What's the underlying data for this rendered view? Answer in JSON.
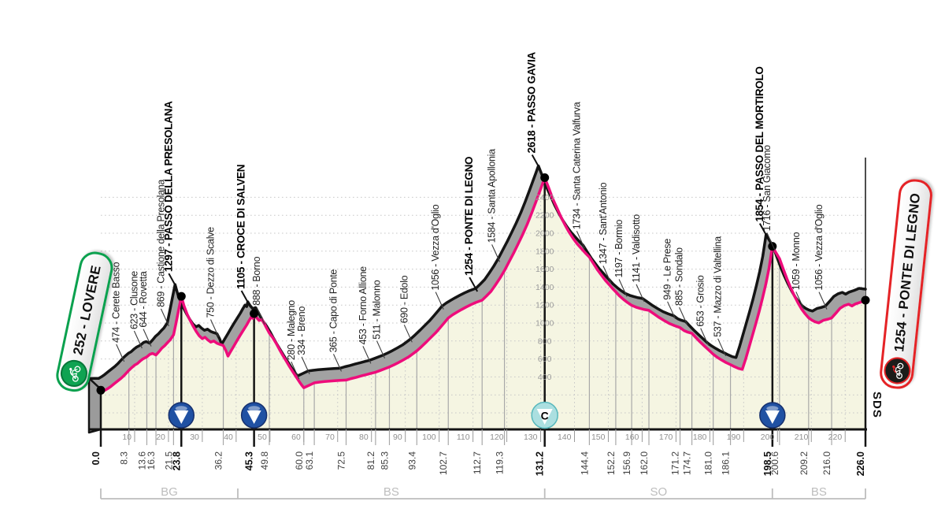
{
  "chart_data": {
    "type": "area",
    "x_range_km": [
      0,
      226
    ],
    "start": {
      "label": "252 - LOVERE",
      "km": 0.0,
      "elevation": 252
    },
    "finish": {
      "label": "1254 - PONTE DI LEGNO",
      "km": 226.0,
      "elevation": 1254
    },
    "waypoints": [
      {
        "km": 8.3,
        "elevation": 474,
        "label": "474 - Cerete Basso",
        "emphasis": false,
        "marker": null
      },
      {
        "km": 13.6,
        "elevation": 623,
        "label": "623 - Clusone",
        "emphasis": false,
        "marker": null
      },
      {
        "km": 16.3,
        "elevation": 644,
        "label": "644 - Rovetta",
        "emphasis": false,
        "marker": null
      },
      {
        "km": 21.5,
        "elevation": 869,
        "label": "869 - Castione della Presolana",
        "emphasis": false,
        "marker": null
      },
      {
        "km": 23.8,
        "elevation": 1297,
        "label": "1297 - PASSO DELLA PRESOLANA",
        "emphasis": true,
        "marker": "kom"
      },
      {
        "km": 36.2,
        "elevation": 750,
        "label": "750 - Dezzo di Scalve",
        "emphasis": false,
        "marker": null
      },
      {
        "km": 45.3,
        "elevation": 1105,
        "label": "1105 - CROCE DI SALVEN",
        "emphasis": true,
        "marker": "kom"
      },
      {
        "km": 49.8,
        "elevation": 888,
        "label": "888 - Borno",
        "emphasis": false,
        "marker": null
      },
      {
        "km": 60.0,
        "elevation": 280,
        "label": "280 - Malegno",
        "emphasis": false,
        "marker": null
      },
      {
        "km": 63.1,
        "elevation": 334,
        "label": "334 - Breno",
        "emphasis": false,
        "marker": null
      },
      {
        "km": 72.5,
        "elevation": 365,
        "label": "365 - Capo di Ponte",
        "emphasis": false,
        "marker": null
      },
      {
        "km": 81.2,
        "elevation": 453,
        "label": "453 - Forno Allione",
        "emphasis": false,
        "marker": null
      },
      {
        "km": 85.3,
        "elevation": 511,
        "label": "511 - Malonno",
        "emphasis": false,
        "marker": null
      },
      {
        "km": 93.4,
        "elevation": 690,
        "label": "690 - Edolo",
        "emphasis": false,
        "marker": null
      },
      {
        "km": 102.7,
        "elevation": 1056,
        "label": "1056 - Vezza d'Oglio",
        "emphasis": false,
        "marker": null
      },
      {
        "km": 112.7,
        "elevation": 1254,
        "label": "1254 - PONTE DI LEGNO",
        "emphasis": true,
        "marker": null
      },
      {
        "km": 119.3,
        "elevation": 1584,
        "label": "1584 - Santa Apollonia",
        "emphasis": false,
        "marker": null
      },
      {
        "km": 131.2,
        "elevation": 2618,
        "label": "2618 - PASSO GAVIA",
        "emphasis": true,
        "marker": "cima"
      },
      {
        "km": 144.4,
        "elevation": 1734,
        "label": "1734 - Santa Caterina Valfurva",
        "emphasis": false,
        "marker": null
      },
      {
        "km": 152.2,
        "elevation": 1347,
        "label": "1347 - Sant'Antonio",
        "emphasis": false,
        "marker": null
      },
      {
        "km": 156.9,
        "elevation": 1197,
        "label": "1197 - Bormio",
        "emphasis": false,
        "marker": null
      },
      {
        "km": 162.0,
        "elevation": 1141,
        "label": "1141 - Valdisotto",
        "emphasis": false,
        "marker": null
      },
      {
        "km": 171.2,
        "elevation": 949,
        "label": "949 - Le Prese",
        "emphasis": false,
        "marker": null
      },
      {
        "km": 174.7,
        "elevation": 885,
        "label": "885 - Sondalo",
        "emphasis": false,
        "marker": null
      },
      {
        "km": 181.0,
        "elevation": 653,
        "label": "653 - Grosio",
        "emphasis": false,
        "marker": null
      },
      {
        "km": 186.1,
        "elevation": 537,
        "label": "537 - Mazzo di Valtellina",
        "emphasis": false,
        "marker": null
      },
      {
        "km": 198.5,
        "elevation": 1854,
        "label": "1854 - PASSO DEL MORTIROLO",
        "emphasis": true,
        "marker": "kom"
      },
      {
        "km": 200.6,
        "elevation": 1716,
        "label": "1716 - San Giacomo",
        "emphasis": false,
        "marker": null
      },
      {
        "km": 209.2,
        "elevation": 1059,
        "label": "1059 - Monno",
        "emphasis": false,
        "marker": null
      },
      {
        "km": 216.0,
        "elevation": 1056,
        "label": "1056 - Vezza d'Oglio",
        "emphasis": false,
        "marker": null
      }
    ],
    "mountain_markers": [
      {
        "km": 23.8,
        "type": "kom",
        "icon": "triangle-down-circle-icon"
      },
      {
        "km": 45.3,
        "type": "kom",
        "icon": "triangle-down-circle-icon"
      },
      {
        "km": 131.2,
        "type": "cima",
        "icon": "cima-coppi-c-icon",
        "letter": "C"
      },
      {
        "km": 198.5,
        "type": "kom",
        "icon": "triangle-down-circle-icon"
      }
    ],
    "km_ticks": [
      {
        "label": "0.0",
        "km": 0.0,
        "bold": true
      },
      {
        "label": "8.3",
        "km": 8.3,
        "bold": false
      },
      {
        "label": "13.6",
        "km": 13.6,
        "bold": false
      },
      {
        "label": "16.3",
        "km": 16.3,
        "bold": false
      },
      {
        "label": "21.5",
        "km": 21.5,
        "bold": false
      },
      {
        "label": "23.8",
        "km": 23.8,
        "bold": true
      },
      {
        "label": "36.2",
        "km": 36.2,
        "bold": false
      },
      {
        "label": "45.3",
        "km": 45.3,
        "bold": true
      },
      {
        "label": "49.8",
        "km": 49.8,
        "bold": false
      },
      {
        "label": "60.0",
        "km": 60.0,
        "bold": false
      },
      {
        "label": "63.1",
        "km": 63.1,
        "bold": false
      },
      {
        "label": "72.5",
        "km": 72.5,
        "bold": false
      },
      {
        "label": "81.2",
        "km": 81.2,
        "bold": false
      },
      {
        "label": "85.3",
        "km": 85.3,
        "bold": false
      },
      {
        "label": "93.4",
        "km": 93.4,
        "bold": false
      },
      {
        "label": "102.7",
        "km": 102.7,
        "bold": false
      },
      {
        "label": "112.7",
        "km": 112.7,
        "bold": false
      },
      {
        "label": "119.3",
        "km": 119.3,
        "bold": false
      },
      {
        "label": "131.2",
        "km": 131.2,
        "bold": true
      },
      {
        "label": "144.4",
        "km": 144.4,
        "bold": false
      },
      {
        "label": "152.2",
        "km": 152.2,
        "bold": false
      },
      {
        "label": "156.9",
        "km": 156.9,
        "bold": false
      },
      {
        "label": "162.0",
        "km": 162.0,
        "bold": false
      },
      {
        "label": "171.2",
        "km": 171.2,
        "bold": false
      },
      {
        "label": "174.7",
        "km": 174.7,
        "bold": false
      },
      {
        "label": "181.0",
        "km": 181.0,
        "bold": false
      },
      {
        "label": "186.1",
        "km": 186.1,
        "bold": false
      },
      {
        "label": "198.5",
        "km": 198.5,
        "bold": true
      },
      {
        "label": "200.6",
        "km": 200.6,
        "bold": false
      },
      {
        "label": "209.2",
        "km": 209.2,
        "bold": false
      },
      {
        "label": "216.0",
        "km": 216.0,
        "bold": false
      },
      {
        "label": "226.0",
        "km": 226.0,
        "bold": true
      }
    ],
    "scale_ticks": [
      10,
      20,
      30,
      40,
      50,
      60,
      70,
      80,
      90,
      100,
      110,
      120,
      130,
      140,
      150,
      160,
      170,
      180,
      190,
      200,
      210,
      220
    ],
    "elevation_labels": [
      400,
      600,
      800,
      1000,
      1200,
      1400,
      1600,
      1800,
      2000,
      2200,
      2400
    ],
    "elevation_labels_at_km": 131.2,
    "provinces": [
      {
        "label": "BG",
        "from_km": 0,
        "to_km": 40.5
      },
      {
        "label": "BS",
        "from_km": 40.5,
        "to_km": 131.2
      },
      {
        "label": "SO",
        "from_km": 131.2,
        "to_km": 198.5
      },
      {
        "label": "BS",
        "from_km": 198.5,
        "to_km": 226
      }
    ],
    "profile": [
      [
        0,
        252
      ],
      [
        1.2,
        252
      ],
      [
        2,
        268
      ],
      [
        3,
        295
      ],
      [
        4,
        325
      ],
      [
        5,
        355
      ],
      [
        6,
        385
      ],
      [
        7,
        420
      ],
      [
        8.3,
        474
      ],
      [
        9.2,
        505
      ],
      [
        10,
        532
      ],
      [
        10.8,
        548
      ],
      [
        11.6,
        575
      ],
      [
        12.5,
        602
      ],
      [
        13.6,
        623
      ],
      [
        14.5,
        652
      ],
      [
        15.3,
        661
      ],
      [
        16.3,
        644
      ],
      [
        17.2,
        682
      ],
      [
        18,
        718
      ],
      [
        18.9,
        748
      ],
      [
        19.7,
        782
      ],
      [
        20.5,
        812
      ],
      [
        21.5,
        869
      ],
      [
        22.2,
        995
      ],
      [
        23,
        1145
      ],
      [
        23.8,
        1297
      ],
      [
        24.6,
        1190
      ],
      [
        25.5,
        1100
      ],
      [
        26.4,
        1030
      ],
      [
        27.3,
        965
      ],
      [
        28.2,
        905
      ],
      [
        29.1,
        858
      ],
      [
        30,
        825
      ],
      [
        30.8,
        842
      ],
      [
        31.6,
        812
      ],
      [
        32.5,
        788
      ],
      [
        33.4,
        800
      ],
      [
        34.3,
        775
      ],
      [
        35.2,
        762
      ],
      [
        36.2,
        750
      ],
      [
        37,
        690
      ],
      [
        37.6,
        632
      ],
      [
        38.4,
        685
      ],
      [
        39.3,
        742
      ],
      [
        40.2,
        800
      ],
      [
        41.1,
        858
      ],
      [
        42.1,
        918
      ],
      [
        43.1,
        978
      ],
      [
        43.9,
        1032
      ],
      [
        44.5,
        1068
      ],
      [
        45,
        1052
      ],
      [
        45.3,
        1105
      ],
      [
        46,
        1062
      ],
      [
        46.8,
        1028
      ],
      [
        47.6,
        1040
      ],
      [
        48.3,
        995
      ],
      [
        49,
        945
      ],
      [
        49.8,
        888
      ],
      [
        50.8,
        838
      ],
      [
        51.8,
        775
      ],
      [
        52.8,
        705
      ],
      [
        53.8,
        640
      ],
      [
        54.8,
        578
      ],
      [
        55.8,
        515
      ],
      [
        56.8,
        455
      ],
      [
        57.8,
        398
      ],
      [
        58.8,
        340
      ],
      [
        59.4,
        308
      ],
      [
        60,
        280
      ],
      [
        61.5,
        305
      ],
      [
        63.1,
        334
      ],
      [
        64.6,
        342
      ],
      [
        66.1,
        348
      ],
      [
        67.6,
        353
      ],
      [
        69.1,
        358
      ],
      [
        70.8,
        362
      ],
      [
        72.5,
        365
      ],
      [
        74,
        382
      ],
      [
        75.5,
        396
      ],
      [
        77,
        411
      ],
      [
        78.5,
        426
      ],
      [
        80,
        441
      ],
      [
        81.2,
        453
      ],
      [
        82.6,
        472
      ],
      [
        84,
        492
      ],
      [
        85.3,
        511
      ],
      [
        86.7,
        536
      ],
      [
        88.1,
        562
      ],
      [
        89.5,
        591
      ],
      [
        91,
        624
      ],
      [
        92.2,
        656
      ],
      [
        93.4,
        690
      ],
      [
        94.8,
        738
      ],
      [
        96.2,
        788
      ],
      [
        97.6,
        840
      ],
      [
        99,
        892
      ],
      [
        100.3,
        948
      ],
      [
        101.5,
        1002
      ],
      [
        102.7,
        1056
      ],
      [
        104,
        1092
      ],
      [
        105.3,
        1122
      ],
      [
        106.6,
        1150
      ],
      [
        108,
        1178
      ],
      [
        109.4,
        1204
      ],
      [
        110.8,
        1228
      ],
      [
        112.7,
        1254
      ],
      [
        114,
        1302
      ],
      [
        115.3,
        1352
      ],
      [
        116.6,
        1422
      ],
      [
        118,
        1502
      ],
      [
        119.3,
        1584
      ],
      [
        120.6,
        1678
      ],
      [
        122,
        1778
      ],
      [
        123.3,
        1878
      ],
      [
        124.6,
        1978
      ],
      [
        126,
        2098
      ],
      [
        127.3,
        2218
      ],
      [
        128.6,
        2348
      ],
      [
        129.6,
        2452
      ],
      [
        130.4,
        2535
      ],
      [
        131.2,
        2618
      ],
      [
        132.4,
        2502
      ],
      [
        133.6,
        2382
      ],
      [
        134.8,
        2282
      ],
      [
        136,
        2182
      ],
      [
        137.2,
        2092
      ],
      [
        138.4,
        2012
      ],
      [
        139.6,
        1942
      ],
      [
        140.8,
        1882
      ],
      [
        142,
        1830
      ],
      [
        143.2,
        1780
      ],
      [
        144.4,
        1734
      ],
      [
        145.6,
        1662
      ],
      [
        146.8,
        1592
      ],
      [
        148,
        1532
      ],
      [
        149.2,
        1472
      ],
      [
        150.4,
        1422
      ],
      [
        151.3,
        1382
      ],
      [
        152.2,
        1347
      ],
      [
        153.3,
        1302
      ],
      [
        154.5,
        1262
      ],
      [
        155.7,
        1227
      ],
      [
        156.9,
        1197
      ],
      [
        158.2,
        1176
      ],
      [
        159.5,
        1161
      ],
      [
        160.7,
        1150
      ],
      [
        162,
        1141
      ],
      [
        163.5,
        1102
      ],
      [
        165,
        1062
      ],
      [
        166.5,
        1027
      ],
      [
        168,
        996
      ],
      [
        169.6,
        970
      ],
      [
        171.2,
        949
      ],
      [
        172.4,
        916
      ],
      [
        173.5,
        898
      ],
      [
        174.7,
        885
      ],
      [
        175.9,
        838
      ],
      [
        177.1,
        790
      ],
      [
        178.4,
        744
      ],
      [
        179.7,
        698
      ],
      [
        181,
        653
      ],
      [
        182.3,
        616
      ],
      [
        183.6,
        586
      ],
      [
        184.8,
        560
      ],
      [
        186.1,
        537
      ],
      [
        187.3,
        514
      ],
      [
        188.5,
        494
      ],
      [
        189.6,
        484
      ],
      [
        190.6,
        600
      ],
      [
        191.6,
        732
      ],
      [
        192.6,
        862
      ],
      [
        193.6,
        994
      ],
      [
        194.6,
        1132
      ],
      [
        195.6,
        1282
      ],
      [
        196.6,
        1442
      ],
      [
        197.5,
        1612
      ],
      [
        198.5,
        1854
      ],
      [
        199.5,
        1788
      ],
      [
        200.6,
        1716
      ],
      [
        201.7,
        1602
      ],
      [
        202.8,
        1492
      ],
      [
        203.9,
        1392
      ],
      [
        205,
        1302
      ],
      [
        206.1,
        1222
      ],
      [
        207.2,
        1152
      ],
      [
        208.2,
        1102
      ],
      [
        209.2,
        1059
      ],
      [
        210.2,
        1032
      ],
      [
        211.2,
        1012
      ],
      [
        212.2,
        1002
      ],
      [
        213.5,
        1030
      ],
      [
        215,
        1044
      ],
      [
        216,
        1056
      ],
      [
        217.5,
        1120
      ],
      [
        218.5,
        1165
      ],
      [
        219.8,
        1195
      ],
      [
        221,
        1210
      ],
      [
        222,
        1190
      ],
      [
        223,
        1212
      ],
      [
        224.5,
        1232
      ],
      [
        226,
        1254
      ]
    ],
    "watermark": "SDS",
    "colors": {
      "profile_line": "#ee0c7b",
      "area_fill": "#f5f5e2",
      "band_fill": "#a2a2a2",
      "edge": "#141414",
      "kom_marker": "#2051a3",
      "cima_marker": "#abdfe0",
      "start_accent": "#0aa14e",
      "finish_accent": "#e52326",
      "grid_dots": "#c8c8c8",
      "axis_gray": "#8f8f8f",
      "province_gray": "#bdbdbd"
    }
  }
}
